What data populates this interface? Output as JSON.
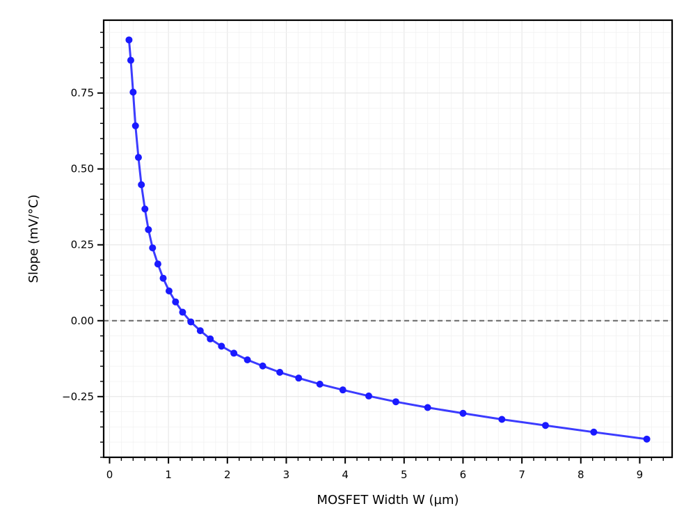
{
  "chart_data": {
    "type": "line",
    "title": "",
    "xlabel": "MOSFET Width W (µm)",
    "ylabel": "Slope (mV/°C)",
    "xlim": [
      -0.1,
      9.55
    ],
    "ylim": [
      -0.45,
      0.99
    ],
    "xticks": [
      0,
      1,
      2,
      3,
      4,
      5,
      6,
      7,
      8,
      9
    ],
    "xtick_labels": [
      "0",
      "1",
      "2",
      "3",
      "4",
      "5",
      "6",
      "7",
      "8",
      "9"
    ],
    "yticks": [
      -0.25,
      0.0,
      0.25,
      0.5,
      0.75
    ],
    "ytick_labels": [
      "−0.25",
      "0.00",
      "0.25",
      "0.50",
      "0.75"
    ],
    "grid": true,
    "reference_line": {
      "y": 0.0,
      "style": "dashed",
      "color": "#666666"
    },
    "series": [
      {
        "color": "#1a1aff",
        "marker": "circle",
        "x": [
          0.33,
          0.36,
          0.4,
          0.44,
          0.49,
          0.54,
          0.6,
          0.66,
          0.73,
          0.82,
          0.91,
          1.01,
          1.12,
          1.24,
          1.38,
          1.54,
          1.71,
          1.9,
          2.11,
          2.34,
          2.6,
          2.89,
          3.21,
          3.57,
          3.96,
          4.4,
          4.86,
          5.4,
          6.0,
          6.66,
          7.4,
          8.22,
          9.12
        ],
        "y": [
          0.925,
          0.858,
          0.753,
          0.642,
          0.538,
          0.448,
          0.368,
          0.3,
          0.24,
          0.187,
          0.14,
          0.098,
          0.062,
          0.028,
          -0.004,
          -0.033,
          -0.06,
          -0.084,
          -0.107,
          -0.129,
          -0.149,
          -0.17,
          -0.189,
          -0.209,
          -0.228,
          -0.248,
          -0.267,
          -0.286,
          -0.305,
          -0.325,
          -0.345,
          -0.367,
          -0.39
        ]
      }
    ]
  }
}
